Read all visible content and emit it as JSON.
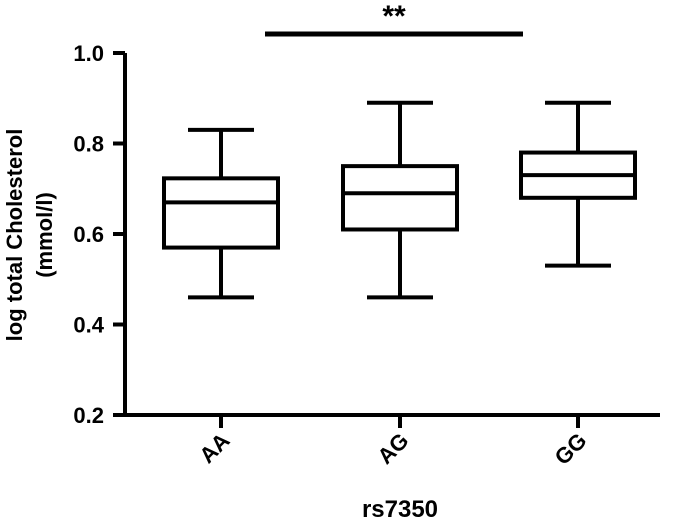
{
  "chart_data": {
    "type": "box",
    "categories": [
      "AA",
      "AG",
      "GG"
    ],
    "boxes": [
      {
        "category": "AA",
        "min": 0.46,
        "q1": 0.57,
        "median": 0.67,
        "q3": 0.723,
        "max": 0.83
      },
      {
        "category": "AG",
        "min": 0.46,
        "q1": 0.61,
        "median": 0.69,
        "q3": 0.75,
        "max": 0.89
      },
      {
        "category": "GG",
        "min": 0.53,
        "q1": 0.68,
        "median": 0.73,
        "q3": 0.78,
        "max": 0.89
      }
    ],
    "xlabel": "rs7350",
    "ylabel_line1": "log total Cholesterol",
    "ylabel_line2": "(mmol/l)",
    "ylim": [
      0.2,
      1.0
    ],
    "yticks": [
      0.2,
      0.4,
      0.6,
      0.8,
      1.0
    ],
    "ytick_labels": [
      "0.2",
      "0.4",
      "0.6",
      "0.8",
      "1.0"
    ],
    "grid": false,
    "significance": {
      "from": "AA",
      "to": "GG",
      "label": "**"
    }
  }
}
